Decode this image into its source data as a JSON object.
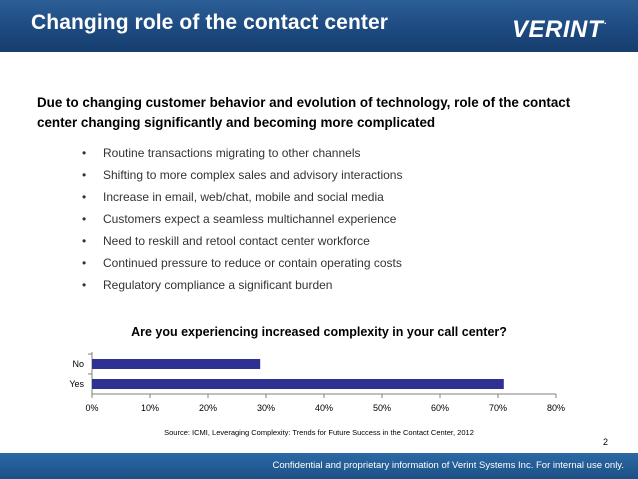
{
  "header": {
    "title": "Changing role of the contact center",
    "logo_text": "VERINT",
    "logo_mark": "."
  },
  "intro": "Due to changing customer behavior and evolution of technology, role of the contact center changing significantly and becoming more complicated",
  "bullets": [
    "Routine transactions migrating to other channels",
    "Shifting to more complex sales and advisory interactions",
    "Increase in email, web/chat, mobile and social media",
    "Customers expect a seamless multichannel experience",
    "Need to reskill and retool contact center workforce",
    "Continued pressure to reduce or contain operating costs",
    "Regulatory compliance a significant burden"
  ],
  "bullet_symbol": "•",
  "chart_data": {
    "type": "bar",
    "orientation": "horizontal",
    "title": "Are you experiencing increased complexity in your call center?",
    "categories": [
      "No",
      "Yes"
    ],
    "values": [
      29,
      71
    ],
    "value_unit": "%",
    "xlim": [
      0,
      80
    ],
    "x_ticks": [
      "0%",
      "10%",
      "20%",
      "30%",
      "40%",
      "50%",
      "60%",
      "70%",
      "80%"
    ],
    "bar_color": "#2e3192",
    "grid": false
  },
  "source": "Source: ICMI, Leveraging Complexity: Trends for Future Success in the Contact Center, 2012",
  "page_number": "2",
  "footer": "Confidential and proprietary information of Verint Systems Inc. For internal use only.",
  "colors": {
    "header": "#1d4a80",
    "footer": "#1d4f86",
    "bar": "#2e3192"
  }
}
